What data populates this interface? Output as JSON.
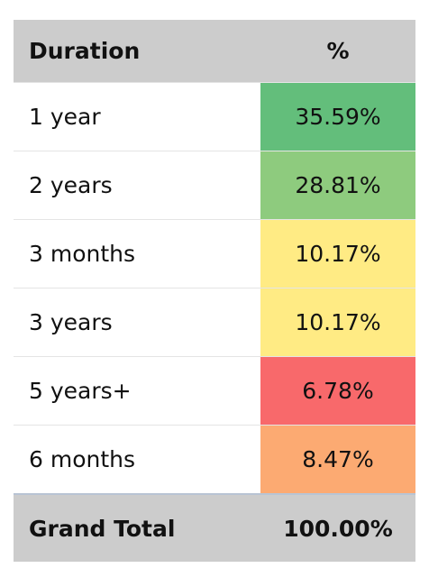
{
  "table": {
    "header": [
      "Duration",
      "%"
    ],
    "rows": [
      {
        "duration": "1 year",
        "percent": "35.59%",
        "color": "#63be7b"
      },
      {
        "duration": "2 years",
        "percent": "28.81%",
        "color": "#8ecb7e"
      },
      {
        "duration": "3 months",
        "percent": "10.17%",
        "color": "#ffeb84"
      },
      {
        "duration": "3 years",
        "percent": "10.17%",
        "color": "#ffeb84"
      },
      {
        "duration": "5 years+",
        "percent": "6.78%",
        "color": "#f8696b"
      },
      {
        "duration": "6 months",
        "percent": "8.47%",
        "color": "#fcaa72"
      }
    ],
    "total": [
      "Grand Total",
      "100.00%"
    ]
  }
}
